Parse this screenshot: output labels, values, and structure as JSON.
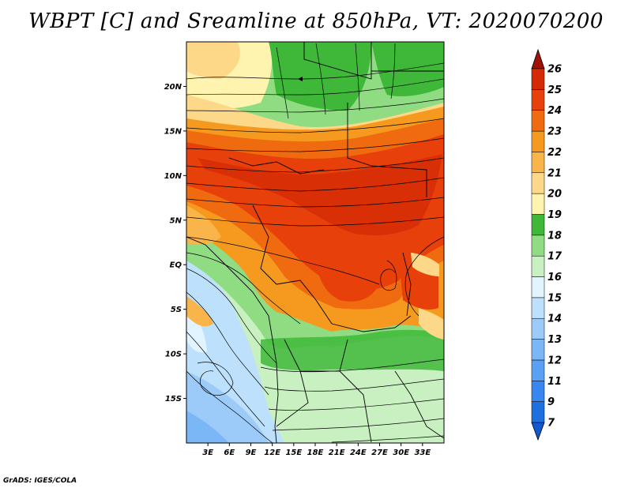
{
  "title": "WBPT [C] and Sreamline at 850hPa, VT: 2020070200",
  "credit": "GrADS: IGES/COLA",
  "map": {
    "lon_range": [
      0,
      36
    ],
    "lat_range": [
      -20,
      25
    ],
    "lat_ticks": [
      {
        "value": 20,
        "label": "20N"
      },
      {
        "value": 15,
        "label": "15N"
      },
      {
        "value": 10,
        "label": "10N"
      },
      {
        "value": 5,
        "label": "5N"
      },
      {
        "value": 0,
        "label": "EQ"
      },
      {
        "value": -5,
        "label": "5S"
      },
      {
        "value": -10,
        "label": "10S"
      },
      {
        "value": -15,
        "label": "15S"
      }
    ],
    "lon_ticks": [
      {
        "value": 3,
        "label": "3E"
      },
      {
        "value": 6,
        "label": "6E"
      },
      {
        "value": 9,
        "label": "9E"
      },
      {
        "value": 12,
        "label": "12E"
      },
      {
        "value": 15,
        "label": "15E"
      },
      {
        "value": 18,
        "label": "18E"
      },
      {
        "value": 21,
        "label": "21E"
      },
      {
        "value": 24,
        "label": "24E"
      },
      {
        "value": 27,
        "label": "27E"
      },
      {
        "value": 30,
        "label": "30E"
      },
      {
        "value": 33,
        "label": "33E"
      }
    ]
  },
  "colorbar": {
    "levels": [
      {
        "label": "7",
        "color": "#1e6fe0"
      },
      {
        "label": "9",
        "color": "#3a86f0"
      },
      {
        "label": "11",
        "color": "#5aa0f4"
      },
      {
        "label": "12",
        "color": "#7bb7f7"
      },
      {
        "label": "13",
        "color": "#9ccbfa"
      },
      {
        "label": "14",
        "color": "#bde0fc"
      },
      {
        "label": "15",
        "color": "#e2f4ff"
      },
      {
        "label": "16",
        "color": "#c8f0c0"
      },
      {
        "label": "17",
        "color": "#8fdc82"
      },
      {
        "label": "18",
        "color": "#3fb83a"
      },
      {
        "label": "19",
        "color": "#fff3b0"
      },
      {
        "label": "20",
        "color": "#fcd888"
      },
      {
        "label": "21",
        "color": "#f9b44a"
      },
      {
        "label": "22",
        "color": "#f59a1e"
      },
      {
        "label": "23",
        "color": "#f06a10"
      },
      {
        "label": "24",
        "color": "#e8400a"
      },
      {
        "label": "25",
        "color": "#d42a06"
      },
      {
        "label": "26",
        "color": "#b81a04"
      }
    ],
    "low_cap_color": "#1458d0",
    "high_cap_color": "#a01004"
  }
}
